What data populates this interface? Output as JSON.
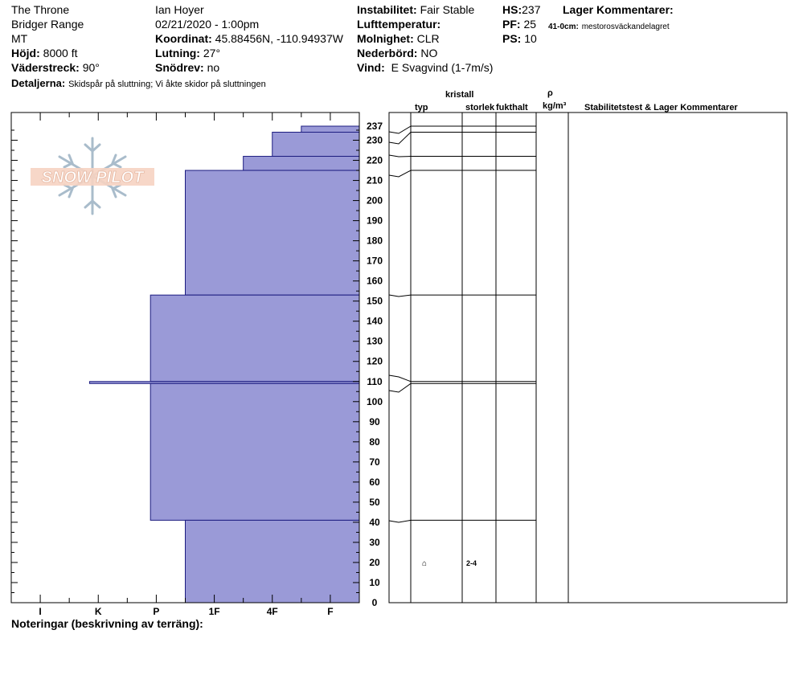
{
  "header": {
    "location": "The Throne",
    "range": "Bridger Range",
    "state": "MT",
    "elevation_label": "Höjd:",
    "elevation_value": "8000 ft",
    "aspect_label": "Väderstreck:",
    "aspect_value": "90°",
    "details_label": "Detaljerna:",
    "details_value": "Skidspår på sluttning;  Vi åkte skidor på sluttningen",
    "observer": "Ian Hoyer",
    "datetime": "02/21/2020 - 1:00pm",
    "coord_label": "Koordinat:",
    "coord_value": "45.88456N, -110.94937W",
    "slope_label": "Lutning:",
    "slope_value": "27°",
    "drift_label": "Snödrev:",
    "drift_value": "no",
    "stability_label": "Instabilitet:",
    "stability_value": "Fair Stable",
    "airtemp_label": "Lufttemperatur:",
    "sky_label": "Molnighet:",
    "sky_value": "CLR",
    "precip_label": "Nederbörd:",
    "precip_value": "NO",
    "wind_label": "Vind:",
    "wind_value": "E  Svagvind (1-7m/s)",
    "hs_label": "HS:",
    "hs_value": "237",
    "pf_label": "PF:",
    "pf_value": "25",
    "ps_label": "PS:",
    "ps_value": "10",
    "layer_comments_label": "Lager Kommentarer:",
    "layer_comment_depth": "41-0cm:",
    "layer_comment_text": "mestorosväckandelagret"
  },
  "logo_text": "SNOW PILOT",
  "columns": {
    "crystal": "kristall",
    "type": "typ",
    "size": "storlek",
    "moisture": "fukthalt",
    "rho": "ρ",
    "density_unit": "kg/m³",
    "stability_tests": "Stabilitetstest & Lager Kommentarer"
  },
  "notes_label": "Noteringar (beskrivning av terräng):",
  "chart_data": {
    "type": "bar",
    "orientation": "horizontal-steps",
    "x_axis": {
      "tick_labels": [
        "I",
        "K",
        "P",
        "1F",
        "4F",
        "F"
      ],
      "label_index": [
        1,
        3,
        5,
        7,
        9,
        11
      ],
      "max_index": 12
    },
    "y_axis": {
      "ylim": [
        0,
        237
      ],
      "ticks": [
        0,
        10,
        20,
        30,
        40,
        50,
        60,
        70,
        80,
        90,
        100,
        110,
        120,
        130,
        140,
        150,
        160,
        170,
        180,
        190,
        200,
        210,
        220,
        230,
        237
      ]
    },
    "layers": [
      {
        "top": 237,
        "bottom": 234,
        "hardness_index": 10
      },
      {
        "top": 234,
        "bottom": 222,
        "hardness_index": 9
      },
      {
        "top": 222,
        "bottom": 215,
        "hardness_index": 8
      },
      {
        "top": 215,
        "bottom": 153,
        "hardness_index": 6
      },
      {
        "top": 153,
        "bottom": 110,
        "hardness_index": 4.8
      },
      {
        "top": 110,
        "bottom": 109,
        "hardness_index": 2.7
      },
      {
        "top": 109,
        "bottom": 41,
        "hardness_index": 4.8
      },
      {
        "top": 41,
        "bottom": 0,
        "hardness_index": 6
      }
    ],
    "layer_table_boundaries": [
      237,
      234,
      222,
      215,
      153,
      110,
      109,
      41,
      0
    ],
    "crystal_annotations": [
      {
        "depth": 20,
        "type_symbol": "⌂",
        "size": "2-4"
      }
    ]
  }
}
